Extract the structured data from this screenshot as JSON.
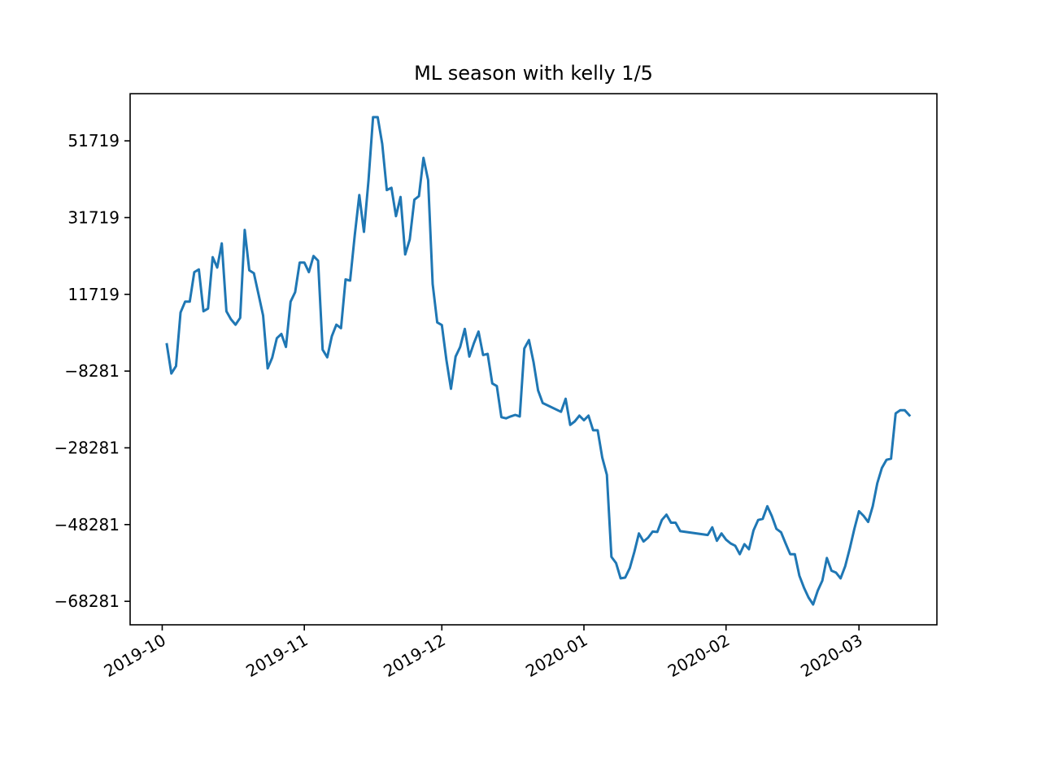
{
  "chart_data": {
    "type": "line",
    "title": "ML season with kelly 1/5",
    "xlabel": "",
    "ylabel": "",
    "x_type": "date",
    "xlim": [
      "2019-09-24",
      "2020-03-18"
    ],
    "ylim": [
      -74400,
      64000
    ],
    "grid": false,
    "legend": false,
    "line_color": "#1f77b4",
    "x_ticks": [
      "2019-10-01",
      "2019-11-01",
      "2019-12-01",
      "2020-01-01",
      "2020-02-01",
      "2020-03-01"
    ],
    "x_tick_labels": [
      "2019-10",
      "2019-11",
      "2019-12",
      "2020-01",
      "2020-02",
      "2020-03"
    ],
    "y_ticks": [
      51719,
      31719,
      11719,
      -8281,
      -28281,
      -48281,
      -68281
    ],
    "y_tick_labels": [
      "51719",
      "31719",
      "11719",
      "−8281",
      "−28281",
      "−48281",
      "−68281"
    ],
    "series": [
      {
        "points": [
          [
            "2019-10-02",
            -1300
          ],
          [
            "2019-10-03",
            -8900
          ],
          [
            "2019-10-04",
            -7000
          ],
          [
            "2019-10-05",
            7000
          ],
          [
            "2019-10-06",
            9800
          ],
          [
            "2019-10-07",
            9800
          ],
          [
            "2019-10-08",
            17500
          ],
          [
            "2019-10-09",
            18200
          ],
          [
            "2019-10-10",
            7300
          ],
          [
            "2019-10-11",
            8000
          ],
          [
            "2019-10-12",
            21400
          ],
          [
            "2019-10-13",
            18700
          ],
          [
            "2019-10-14",
            25000
          ],
          [
            "2019-10-15",
            7300
          ],
          [
            "2019-10-16",
            5200
          ],
          [
            "2019-10-17",
            3800
          ],
          [
            "2019-10-18",
            5600
          ],
          [
            "2019-10-19",
            28500
          ],
          [
            "2019-10-20",
            18000
          ],
          [
            "2019-10-21",
            17200
          ],
          [
            "2019-10-22",
            11800
          ],
          [
            "2019-10-23",
            6200
          ],
          [
            "2019-10-24",
            -7600
          ],
          [
            "2019-10-25",
            -4800
          ],
          [
            "2019-10-26",
            300
          ],
          [
            "2019-10-27",
            1400
          ],
          [
            "2019-10-28",
            -2000
          ],
          [
            "2019-10-29",
            9800
          ],
          [
            "2019-10-30",
            12300
          ],
          [
            "2019-10-31",
            20000
          ],
          [
            "2019-11-01",
            20000
          ],
          [
            "2019-11-02",
            17500
          ],
          [
            "2019-11-03",
            21700
          ],
          [
            "2019-11-04",
            20500
          ],
          [
            "2019-11-05",
            -2700
          ],
          [
            "2019-11-06",
            -4700
          ],
          [
            "2019-11-07",
            800
          ],
          [
            "2019-11-08",
            3800
          ],
          [
            "2019-11-09",
            2900
          ],
          [
            "2019-11-10",
            15600
          ],
          [
            "2019-11-11",
            15300
          ],
          [
            "2019-11-12",
            27100
          ],
          [
            "2019-11-13",
            37600
          ],
          [
            "2019-11-14",
            28000
          ],
          [
            "2019-11-15",
            41400
          ],
          [
            "2019-11-16",
            57900
          ],
          [
            "2019-11-17",
            57900
          ],
          [
            "2019-11-18",
            50900
          ],
          [
            "2019-11-19",
            38900
          ],
          [
            "2019-11-20",
            39500
          ],
          [
            "2019-11-21",
            32100
          ],
          [
            "2019-11-22",
            37100
          ],
          [
            "2019-11-23",
            22100
          ],
          [
            "2019-11-24",
            26000
          ],
          [
            "2019-11-25",
            36400
          ],
          [
            "2019-11-26",
            37300
          ],
          [
            "2019-11-27",
            47300
          ],
          [
            "2019-11-28",
            41500
          ],
          [
            "2019-11-29",
            14400
          ],
          [
            "2019-11-30",
            4400
          ],
          [
            "2019-12-01",
            3700
          ],
          [
            "2019-12-02",
            -5400
          ],
          [
            "2019-12-03",
            -12900
          ],
          [
            "2019-12-04",
            -4500
          ],
          [
            "2019-12-05",
            -2000
          ],
          [
            "2019-12-06",
            2700
          ],
          [
            "2019-12-07",
            -4500
          ],
          [
            "2019-12-08",
            -1000
          ],
          [
            "2019-12-09",
            2000
          ],
          [
            "2019-12-10",
            -4100
          ],
          [
            "2019-12-11",
            -3800
          ],
          [
            "2019-12-12",
            -11500
          ],
          [
            "2019-12-13",
            -12200
          ],
          [
            "2019-12-14",
            -20300
          ],
          [
            "2019-12-15",
            -20600
          ],
          [
            "2019-12-16",
            -20100
          ],
          [
            "2019-12-17",
            -19700
          ],
          [
            "2019-12-18",
            -20100
          ],
          [
            "2019-12-19",
            -2400
          ],
          [
            "2019-12-20",
            -200
          ],
          [
            "2019-12-21",
            -5900
          ],
          [
            "2019-12-22",
            -13300
          ],
          [
            "2019-12-23",
            -16600
          ],
          [
            "2019-12-27",
            -18900
          ],
          [
            "2019-12-28",
            -15500
          ],
          [
            "2019-12-29",
            -22300
          ],
          [
            "2019-12-30",
            -21400
          ],
          [
            "2019-12-31",
            -19900
          ],
          [
            "2020-01-01",
            -21100
          ],
          [
            "2020-01-02",
            -19900
          ],
          [
            "2020-01-03",
            -23700
          ],
          [
            "2020-01-04",
            -23700
          ],
          [
            "2020-01-05",
            -30800
          ],
          [
            "2020-01-06",
            -35300
          ],
          [
            "2020-01-07",
            -56700
          ],
          [
            "2020-01-08",
            -58300
          ],
          [
            "2020-01-09",
            -62300
          ],
          [
            "2020-01-10",
            -62100
          ],
          [
            "2020-01-11",
            -59600
          ],
          [
            "2020-01-12",
            -55400
          ],
          [
            "2020-01-13",
            -50600
          ],
          [
            "2020-01-14",
            -52700
          ],
          [
            "2020-01-15",
            -51700
          ],
          [
            "2020-01-16",
            -50100
          ],
          [
            "2020-01-17",
            -50200
          ],
          [
            "2020-01-18",
            -47100
          ],
          [
            "2020-01-19",
            -45700
          ],
          [
            "2020-01-20",
            -47800
          ],
          [
            "2020-01-21",
            -47800
          ],
          [
            "2020-01-22",
            -50000
          ],
          [
            "2020-01-28",
            -51000
          ],
          [
            "2020-01-29",
            -49000
          ],
          [
            "2020-01-30",
            -52500
          ],
          [
            "2020-01-31",
            -50600
          ],
          [
            "2020-02-01",
            -52200
          ],
          [
            "2020-02-02",
            -53200
          ],
          [
            "2020-02-03",
            -53800
          ],
          [
            "2020-02-04",
            -56000
          ],
          [
            "2020-02-05",
            -53400
          ],
          [
            "2020-02-06",
            -54700
          ],
          [
            "2020-02-07",
            -49800
          ],
          [
            "2020-02-08",
            -47100
          ],
          [
            "2020-02-09",
            -46800
          ],
          [
            "2020-02-10",
            -43500
          ],
          [
            "2020-02-11",
            -46100
          ],
          [
            "2020-02-12",
            -49400
          ],
          [
            "2020-02-13",
            -50300
          ],
          [
            "2020-02-14",
            -53200
          ],
          [
            "2020-02-15",
            -56000
          ],
          [
            "2020-02-16",
            -56000
          ],
          [
            "2020-02-17",
            -61600
          ],
          [
            "2020-02-18",
            -64700
          ],
          [
            "2020-02-19",
            -67300
          ],
          [
            "2020-02-20",
            -69100
          ],
          [
            "2020-02-21",
            -65500
          ],
          [
            "2020-02-22",
            -62900
          ],
          [
            "2020-02-23",
            -57000
          ],
          [
            "2020-02-24",
            -60300
          ],
          [
            "2020-02-25",
            -60800
          ],
          [
            "2020-02-26",
            -62300
          ],
          [
            "2020-02-27",
            -59100
          ],
          [
            "2020-02-28",
            -54500
          ],
          [
            "2020-02-29",
            -49400
          ],
          [
            "2020-03-01",
            -44800
          ],
          [
            "2020-03-02",
            -46000
          ],
          [
            "2020-03-03",
            -47600
          ],
          [
            "2020-03-04",
            -43500
          ],
          [
            "2020-03-05",
            -37500
          ],
          [
            "2020-03-06",
            -33500
          ],
          [
            "2020-03-07",
            -31400
          ],
          [
            "2020-03-08",
            -31100
          ],
          [
            "2020-03-09",
            -19300
          ],
          [
            "2020-03-10",
            -18500
          ],
          [
            "2020-03-11",
            -18500
          ],
          [
            "2020-03-12",
            -19800
          ]
        ]
      }
    ]
  }
}
